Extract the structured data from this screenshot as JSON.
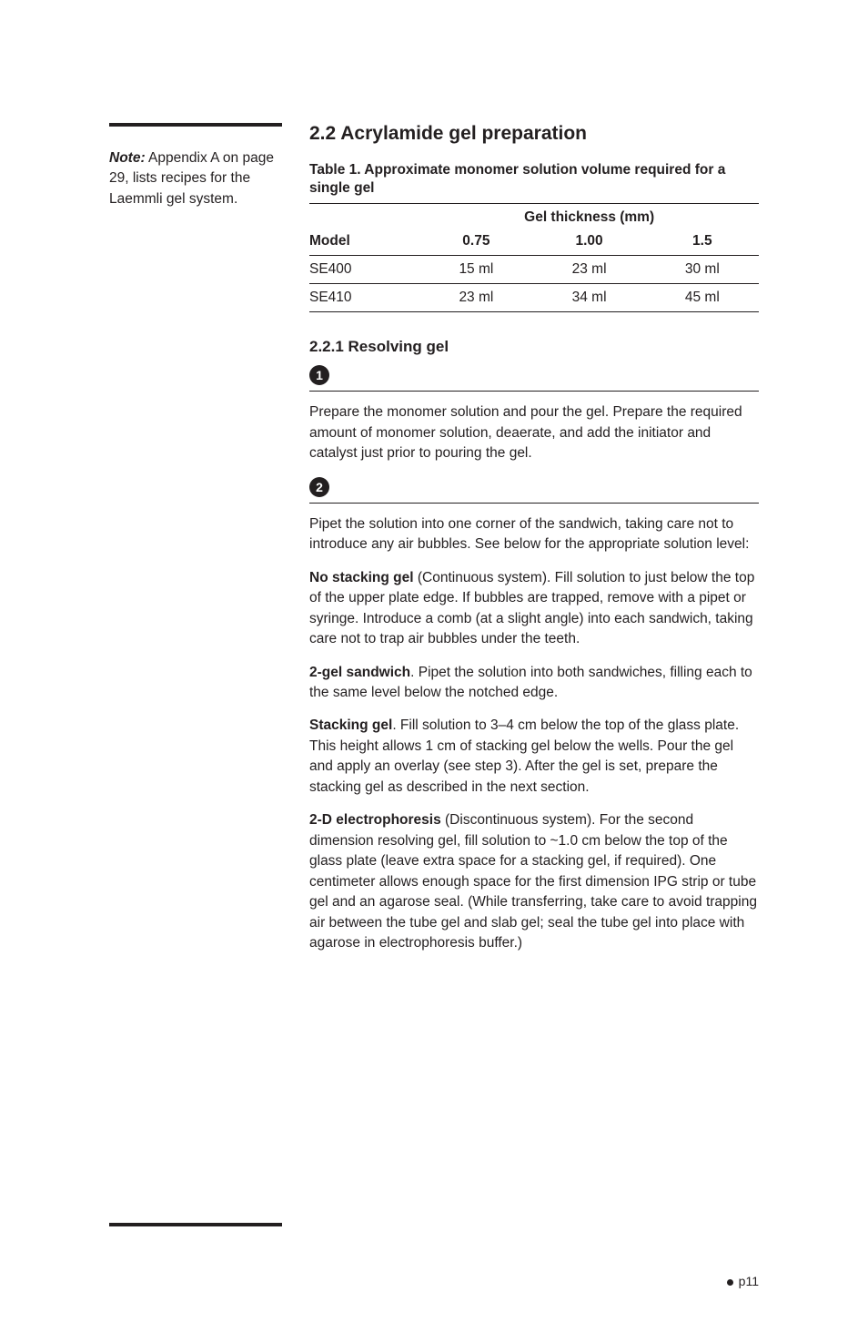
{
  "sidenote": {
    "lead": "Note:",
    "text": " Appendix A on page 29, lists recipes for the Laemmli gel system."
  },
  "section": {
    "title": "2.2 Acrylamide gel preparation"
  },
  "table1": {
    "caption": "Table 1. Approximate monomer solution volume required for a single gel",
    "spanner": "Gel thickness (mm)",
    "columns": [
      "Model",
      "0.75",
      "1.00",
      "1.5"
    ],
    "rows": [
      [
        "SE400",
        "15 ml",
        "23 ml",
        "30 ml"
      ],
      [
        "SE410",
        "23 ml",
        "34 ml",
        "45 ml"
      ]
    ]
  },
  "subsection": {
    "title": "2.2.1 Resolving gel"
  },
  "steps": {
    "s1": {
      "num": "1",
      "p1": "Prepare the monomer solution and pour the gel. Prepare the required amount of monomer solution, deaerate, and add the initiator and catalyst just prior to pouring the gel."
    },
    "s2": {
      "num": "2",
      "p1": "Pipet the solution into one corner of the sandwich, taking care not to introduce any air bubbles. See below for the appropriate solution level:",
      "items": {
        "a": {
          "lead": "No stacking gel",
          "text": " (Continuous system). Fill solution to just below the top of the upper plate edge. If bubbles are trapped, remove with a pipet or syringe. Introduce a comb (at a slight angle) into each sandwich, taking care not to trap air bubbles under the teeth."
        },
        "b": {
          "lead": "2-gel sandwich",
          "text": ". Pipet the solution into both sandwiches, filling each to the same level below the notched edge."
        },
        "c": {
          "lead": "Stacking gel",
          "text": ". Fill solution to 3–4 cm below the top of the glass plate. This height allows 1 cm of stacking gel below the wells. Pour the gel and apply an overlay (see step 3). After the gel is set, prepare the stacking gel as described in the next section."
        },
        "d": {
          "lead": "2-D electrophoresis",
          "text": " (Discontinuous system). For the second dimension resolving gel, fill solution to ~1.0 cm below the top of the glass plate (leave extra space for a stacking gel, if required). One centimeter allows enough space for the first dimension IPG strip or tube gel and an agarose seal. (While transferring, take care to avoid trapping air between the tube gel and slab gel; seal the tube gel into place with agarose in electrophoresis buffer.)"
        }
      }
    }
  },
  "page": "p11"
}
